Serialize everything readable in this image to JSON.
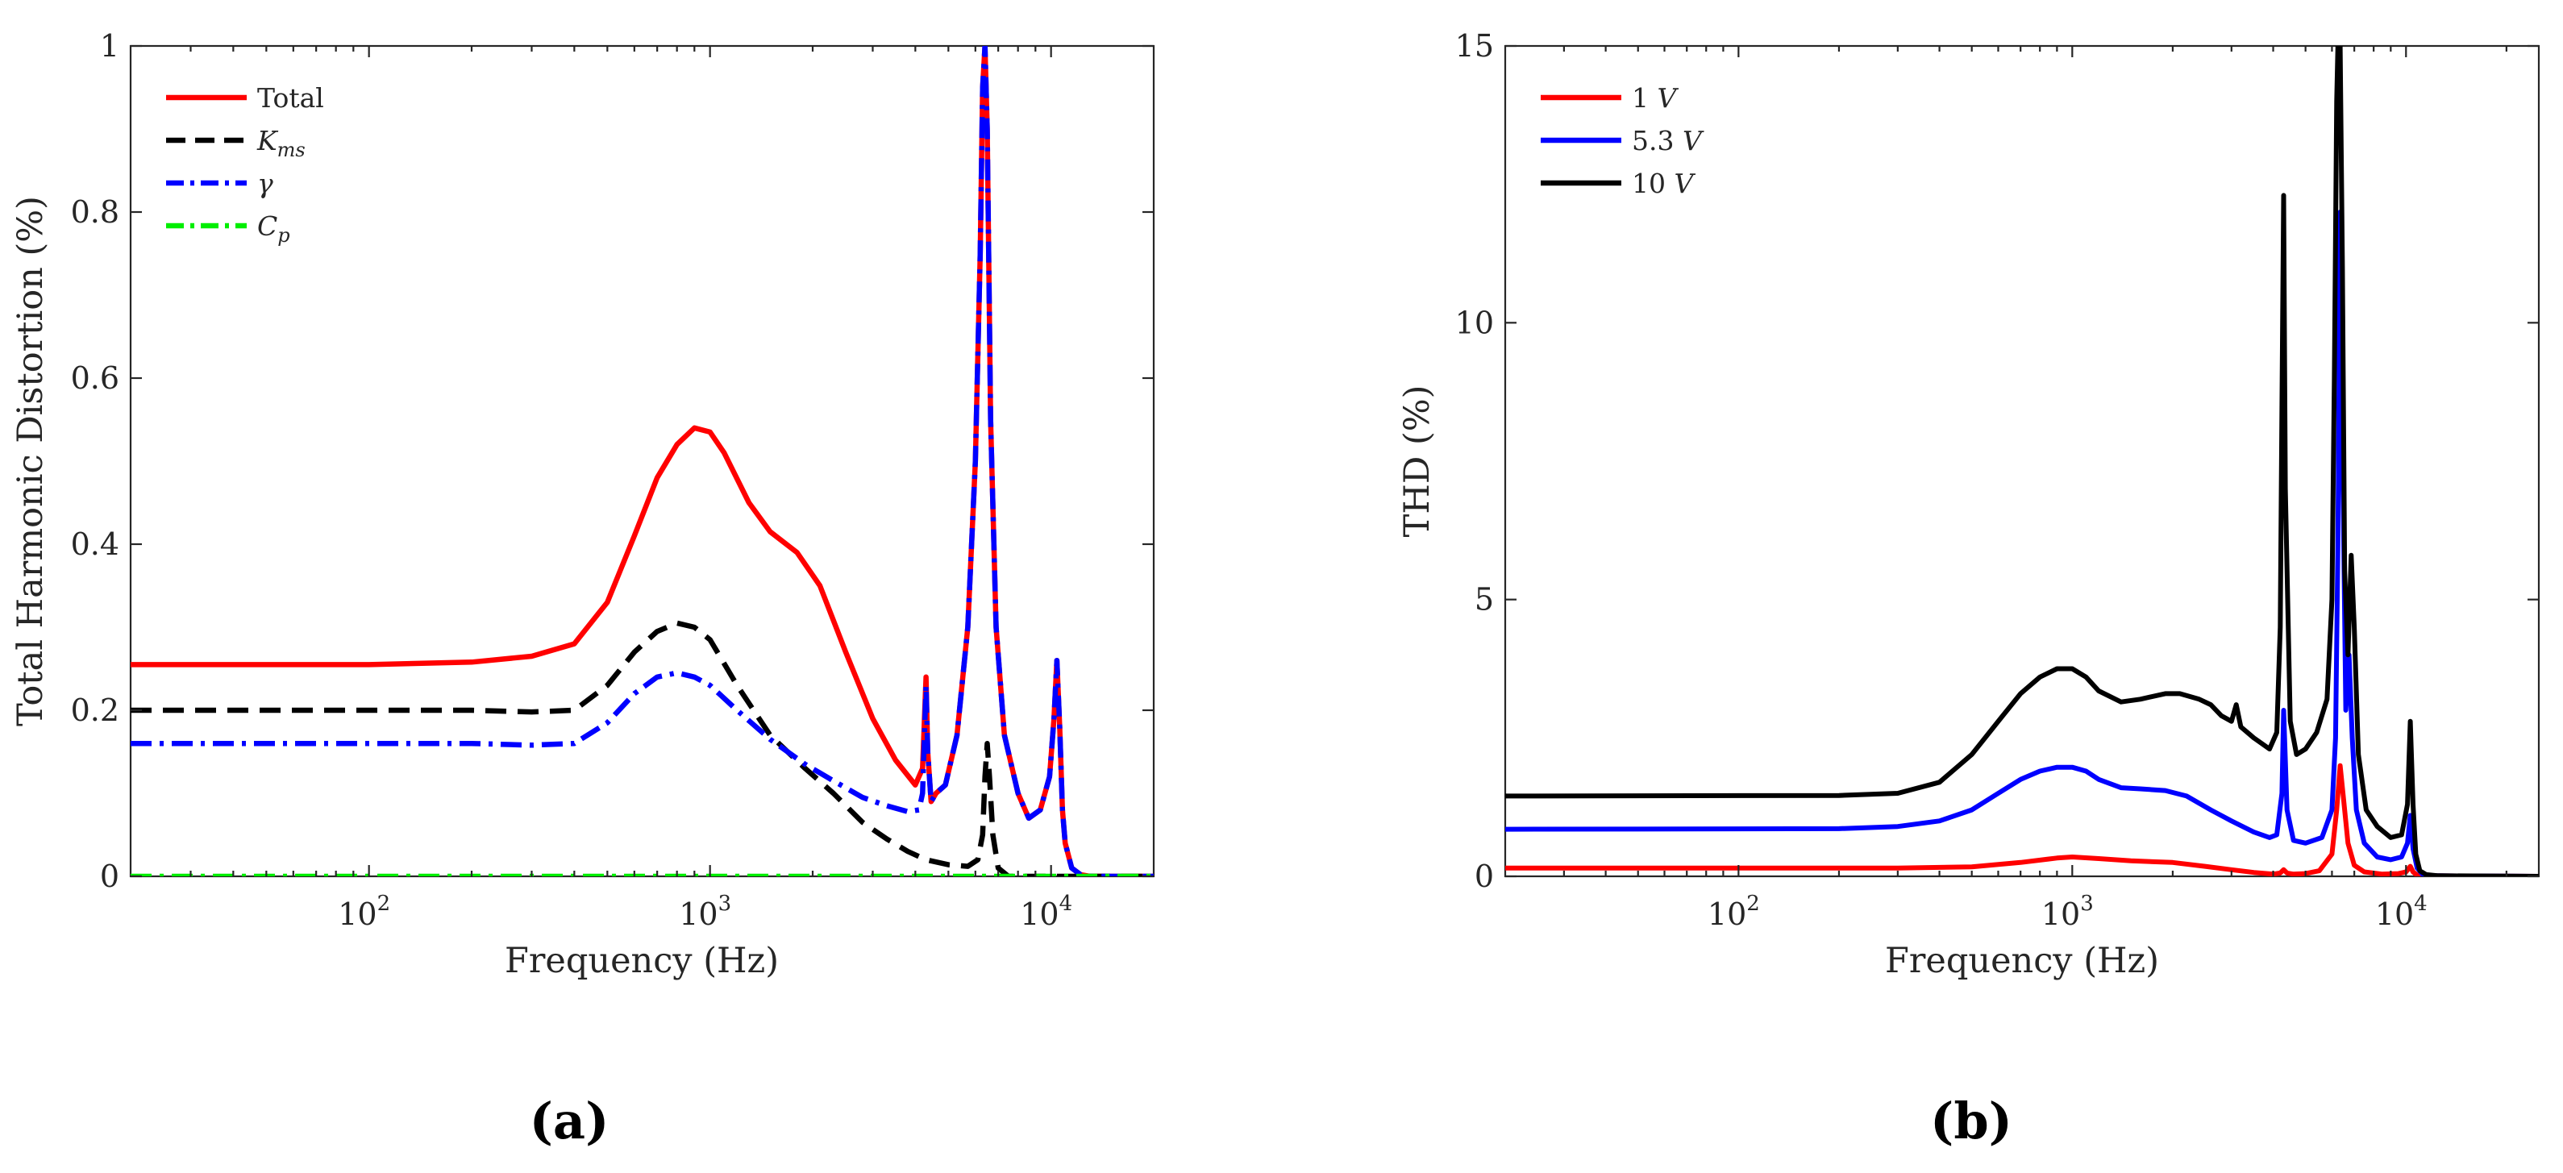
{
  "chart_data": [
    {
      "type": "line",
      "panel_label": "(a)",
      "title": "",
      "xlabel": "Frequency (Hz)",
      "ylabel": "Total Harmonic Distortion (%)",
      "xscale": "log",
      "xlim": [
        20,
        20000
      ],
      "ylim": [
        0,
        1
      ],
      "xticks": [
        100,
        1000,
        10000
      ],
      "xtick_labels": [
        {
          "base": "10",
          "exp": "2"
        },
        {
          "base": "10",
          "exp": "3"
        },
        {
          "base": "10",
          "exp": "4"
        }
      ],
      "yticks": [
        0,
        0.2,
        0.4,
        0.6,
        0.8,
        1
      ],
      "ytick_labels": [
        "0",
        "0.2",
        "0.4",
        "0.6",
        "0.8",
        "1"
      ],
      "grid": false,
      "legend_position": "top-left",
      "series": [
        {
          "name": "Total",
          "color": "#ff0000",
          "dash": "solid",
          "x": [
            20,
            100,
            200,
            300,
            400,
            500,
            600,
            700,
            800,
            900,
            1000,
            1100,
            1300,
            1500,
            1800,
            2100,
            2500,
            3000,
            3500,
            4000,
            4200,
            4300,
            4350,
            4450,
            4600,
            4900,
            5300,
            5700,
            6000,
            6200,
            6300,
            6400,
            6500,
            6650,
            6900,
            7300,
            8000,
            8600,
            9300,
            9900,
            10200,
            10400,
            10600,
            10800,
            11000,
            11500,
            12200,
            13000,
            20000
          ],
          "y": [
            0.255,
            0.255,
            0.258,
            0.265,
            0.28,
            0.33,
            0.41,
            0.48,
            0.52,
            0.54,
            0.535,
            0.51,
            0.45,
            0.415,
            0.39,
            0.35,
            0.27,
            0.19,
            0.14,
            0.11,
            0.13,
            0.24,
            0.15,
            0.09,
            0.1,
            0.11,
            0.17,
            0.3,
            0.5,
            0.75,
            0.95,
            1.0,
            0.9,
            0.55,
            0.3,
            0.17,
            0.1,
            0.07,
            0.08,
            0.12,
            0.19,
            0.26,
            0.18,
            0.08,
            0.04,
            0.01,
            0.002,
            0,
            0
          ]
        },
        {
          "name": "Kms",
          "color": "#000000",
          "dash": "dashed",
          "x": [
            20,
            100,
            200,
            300,
            400,
            500,
            600,
            700,
            800,
            900,
            1000,
            1200,
            1500,
            1900,
            2300,
            2800,
            3300,
            3800,
            4300,
            5000,
            5700,
            6100,
            6300,
            6400,
            6500,
            6600,
            6750,
            7000,
            7500,
            20000
          ],
          "y": [
            0.2,
            0.2,
            0.2,
            0.198,
            0.2,
            0.23,
            0.27,
            0.295,
            0.305,
            0.3,
            0.285,
            0.23,
            0.17,
            0.13,
            0.1,
            0.065,
            0.045,
            0.03,
            0.02,
            0.014,
            0.012,
            0.02,
            0.05,
            0.12,
            0.16,
            0.12,
            0.05,
            0.01,
            0,
            0
          ]
        },
        {
          "name": "γ",
          "color": "#0000ff",
          "dash": "dashdot",
          "x": [
            20,
            100,
            200,
            300,
            400,
            500,
            600,
            700,
            800,
            900,
            1000,
            1200,
            1500,
            1900,
            2300,
            2800,
            3300,
            3800,
            4100,
            4200,
            4300,
            4350,
            4450,
            4600,
            4900,
            5300,
            5700,
            6000,
            6200,
            6300,
            6400,
            6500,
            6650,
            6900,
            7300,
            8000,
            8600,
            9300,
            9900,
            10200,
            10400,
            10600,
            10800,
            11000,
            11500,
            12200,
            13000,
            20000
          ],
          "y": [
            0.16,
            0.16,
            0.16,
            0.158,
            0.16,
            0.185,
            0.22,
            0.24,
            0.245,
            0.24,
            0.23,
            0.2,
            0.165,
            0.135,
            0.115,
            0.095,
            0.085,
            0.078,
            0.08,
            0.1,
            0.23,
            0.15,
            0.09,
            0.1,
            0.11,
            0.17,
            0.3,
            0.5,
            0.75,
            0.95,
            1.0,
            0.9,
            0.55,
            0.3,
            0.17,
            0.1,
            0.07,
            0.08,
            0.12,
            0.19,
            0.26,
            0.18,
            0.08,
            0.04,
            0.01,
            0.002,
            0,
            0
          ]
        },
        {
          "name": "Cp",
          "color": "#00ee00",
          "dash": "dashdot",
          "x": [
            20,
            20000
          ],
          "y": [
            0,
            0
          ]
        }
      ]
    },
    {
      "type": "line",
      "panel_label": "(b)",
      "title": "",
      "xlabel": "Frequency (Hz)",
      "ylabel": "THD (%)",
      "xscale": "log",
      "xlim": [
        20,
        25000
      ],
      "ylim": [
        0,
        15
      ],
      "xticks": [
        100,
        1000,
        10000
      ],
      "xtick_labels": [
        {
          "base": "10",
          "exp": "2"
        },
        {
          "base": "10",
          "exp": "3"
        },
        {
          "base": "10",
          "exp": "4"
        }
      ],
      "yticks": [
        0,
        5,
        10,
        15
      ],
      "ytick_labels": [
        "0",
        "5",
        "10",
        "15"
      ],
      "grid": false,
      "legend_position": "top-left",
      "series": [
        {
          "name": "1 V",
          "color": "#ff0000",
          "dash": "solid",
          "x": [
            20,
            300,
            500,
            700,
            900,
            1000,
            1200,
            1500,
            2000,
            2500,
            3000,
            3500,
            4000,
            4200,
            4300,
            4400,
            4600,
            5000,
            5500,
            6000,
            6200,
            6350,
            6500,
            6700,
            7000,
            7500,
            8500,
            9500,
            10000,
            10300,
            10500,
            10800,
            11500,
            25000
          ],
          "y": [
            0.15,
            0.15,
            0.17,
            0.25,
            0.33,
            0.35,
            0.32,
            0.28,
            0.25,
            0.18,
            0.12,
            0.07,
            0.04,
            0.06,
            0.12,
            0.06,
            0.04,
            0.05,
            0.1,
            0.4,
            1.2,
            2.0,
            1.4,
            0.6,
            0.2,
            0.08,
            0.04,
            0.05,
            0.08,
            0.18,
            0.08,
            0.02,
            0.01,
            0
          ]
        },
        {
          "name": "5.3 V",
          "color": "#0000ff",
          "dash": "solid",
          "x": [
            20,
            200,
            300,
            400,
            500,
            600,
            700,
            800,
            900,
            1000,
            1100,
            1200,
            1400,
            1600,
            1900,
            2200,
            2600,
            3000,
            3500,
            3900,
            4100,
            4250,
            4300,
            4400,
            4600,
            5000,
            5600,
            6000,
            6150,
            6250,
            6350,
            6450,
            6600,
            6750,
            6900,
            7100,
            7500,
            8200,
            9000,
            9700,
            10100,
            10300,
            10500,
            10800,
            11200,
            12000,
            25000
          ],
          "y": [
            0.85,
            0.86,
            0.9,
            1.0,
            1.2,
            1.5,
            1.75,
            1.9,
            1.97,
            1.97,
            1.9,
            1.75,
            1.6,
            1.58,
            1.55,
            1.45,
            1.2,
            1.0,
            0.8,
            0.7,
            0.75,
            1.5,
            3.0,
            1.2,
            0.65,
            0.6,
            0.7,
            1.2,
            2.5,
            6.0,
            12.0,
            8.0,
            3.0,
            4.0,
            2.5,
            1.2,
            0.6,
            0.35,
            0.3,
            0.35,
            0.6,
            1.1,
            0.5,
            0.15,
            0.04,
            0.01,
            0
          ]
        },
        {
          "name": "10 V",
          "color": "#000000",
          "dash": "solid",
          "x": [
            20,
            200,
            300,
            400,
            500,
            600,
            700,
            800,
            900,
            1000,
            1100,
            1200,
            1400,
            1600,
            1900,
            2100,
            2400,
            2600,
            2800,
            3000,
            3100,
            3200,
            3500,
            3900,
            4100,
            4200,
            4250,
            4300,
            4350,
            4500,
            4700,
            5000,
            5400,
            5800,
            6000,
            6100,
            6200,
            6250,
            6350,
            6450,
            6550,
            6700,
            6850,
            7000,
            7200,
            7600,
            8200,
            9000,
            9700,
            10100,
            10300,
            10500,
            10700,
            11000,
            11500,
            12500,
            25000
          ],
          "y": [
            1.45,
            1.46,
            1.5,
            1.7,
            2.2,
            2.8,
            3.3,
            3.6,
            3.75,
            3.75,
            3.6,
            3.35,
            3.15,
            3.2,
            3.3,
            3.3,
            3.2,
            3.1,
            2.9,
            2.8,
            3.1,
            2.7,
            2.5,
            2.3,
            2.6,
            4.5,
            8.5,
            12.3,
            7.0,
            2.8,
            2.2,
            2.3,
            2.6,
            3.2,
            5.0,
            9.0,
            14.0,
            15.0,
            15.0,
            11.0,
            5.5,
            4.0,
            5.8,
            4.5,
            2.2,
            1.2,
            0.9,
            0.7,
            0.75,
            1.3,
            2.8,
            1.3,
            0.4,
            0.1,
            0.03,
            0.01,
            0
          ]
        }
      ]
    }
  ]
}
